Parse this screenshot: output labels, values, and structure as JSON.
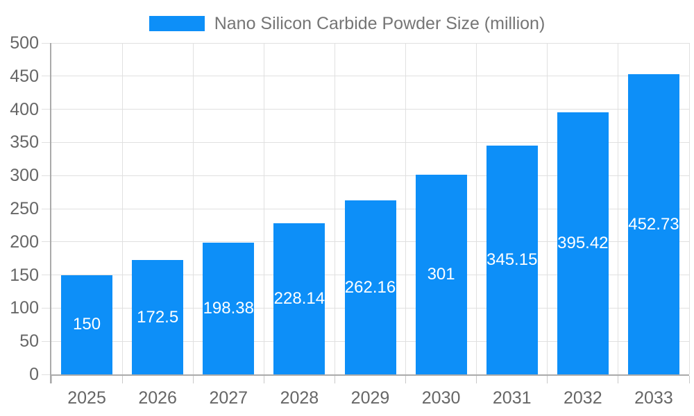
{
  "chart_data": {
    "type": "bar",
    "title": "Nano Silicon Carbide Powder Size (million)",
    "series_name": "Nano Silicon Carbide Powder Size (million)",
    "categories": [
      "2025",
      "2026",
      "2027",
      "2028",
      "2029",
      "2030",
      "2031",
      "2032",
      "2033"
    ],
    "values": [
      150,
      172.5,
      198.38,
      228.14,
      262.16,
      301,
      345.15,
      395.42,
      452.73
    ],
    "value_labels": [
      "150",
      "172.5",
      "198.38",
      "228.14",
      "262.16",
      "301",
      "345.15",
      "395.42",
      "452.73"
    ],
    "xlabel": "",
    "ylabel": "",
    "ylim": [
      0,
      500
    ],
    "ytick_step": 50,
    "yticks": [
      0,
      50,
      100,
      150,
      200,
      250,
      300,
      350,
      400,
      450,
      500
    ],
    "grid": true,
    "legend_position": "top-center",
    "colors": {
      "bar": "#0d8ff8",
      "axis_line": "#aaaaaa",
      "grid_line": "#e0e0e0",
      "tick_label": "#666666",
      "legend_text": "#757575",
      "value_label": "#ffffff",
      "background": "#ffffff"
    }
  }
}
